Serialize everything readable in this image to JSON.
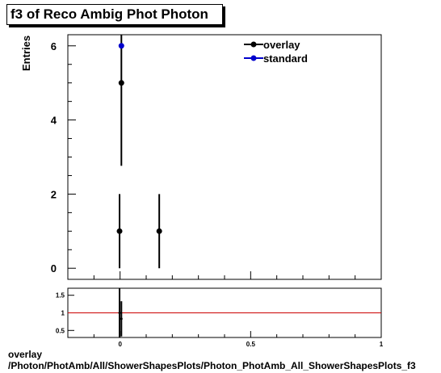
{
  "chart_data": [
    {
      "type": "scatter",
      "title": "f3 of Reco Ambig Phot Photon",
      "ylabel": "Entries",
      "xlim": [
        -0.2,
        1.0
      ],
      "ylim": [
        -0.3,
        6.3
      ],
      "yticks": [
        0,
        2,
        4,
        6
      ],
      "grid": false,
      "legend": "top-right",
      "series": [
        {
          "name": "overlay",
          "color": "#000000",
          "points": [
            {
              "x": -0.002,
              "y": 1,
              "err": 1
            },
            {
              "x": 0.005,
              "y": 5,
              "err": 2.236
            },
            {
              "x": 0.15,
              "y": 1,
              "err": 1
            }
          ]
        },
        {
          "name": "standard",
          "color": "#0000cc",
          "points": [
            {
              "x": 0.005,
              "y": 6,
              "err": 0
            }
          ]
        }
      ]
    },
    {
      "type": "scatter",
      "title": "",
      "xlim": [
        -0.2,
        1.0
      ],
      "ylim": [
        0.3,
        1.7
      ],
      "yticks": [
        0.5,
        1,
        1.5
      ],
      "yticklabels": [
        "0.5",
        "1",
        "1.5"
      ],
      "xticks": [
        0,
        0.5,
        1
      ],
      "xticklabels": [
        "0",
        "0.5",
        "1"
      ],
      "reference_line": {
        "y": 1,
        "color": "#cc0000"
      },
      "series": [
        {
          "name": "",
          "color": "#000000",
          "points": [
            {
              "x": -0.002,
              "y": 1.0,
              "err": 0.7
            },
            {
              "x": 0.005,
              "y": 0.83,
              "err": 0.5
            }
          ]
        }
      ]
    }
  ],
  "footer": {
    "line1": "overlay",
    "line2": "/Photon/PhotAmb/All/ShowerShapesPlots/Photon_PhotAmb_All_ShowerShapesPlots_f3"
  }
}
